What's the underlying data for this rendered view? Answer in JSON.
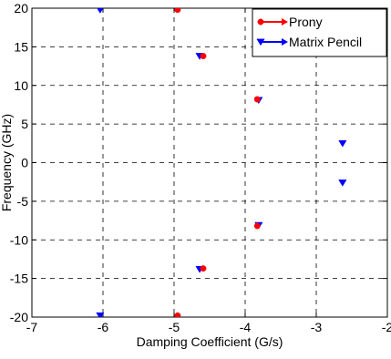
{
  "chart_data": {
    "type": "scatter",
    "title": "",
    "xlabel": "Damping Coefficient (G/s)",
    "ylabel": "Frequency (GHz)",
    "xlim": [
      -7,
      -2
    ],
    "ylim": [
      -20,
      20
    ],
    "xticks": [
      -7,
      -6,
      -5,
      -4,
      -3,
      -2
    ],
    "yticks": [
      -20,
      -15,
      -10,
      -5,
      0,
      5,
      10,
      15,
      20
    ],
    "xtick_labels": [
      "-7",
      "-6",
      "-5",
      "-4",
      "-3",
      "-2"
    ],
    "ytick_labels": [
      "-20",
      "-15",
      "-10",
      "-5",
      "0",
      "5",
      "10",
      "15",
      "20"
    ],
    "grid": true,
    "legend_position": "top-right",
    "series": [
      {
        "name": "Prony",
        "marker": "circle",
        "color": "#ff0000",
        "points": [
          {
            "x": -4.95,
            "y": 19.8
          },
          {
            "x": -4.95,
            "y": -19.8
          },
          {
            "x": -4.59,
            "y": 13.8
          },
          {
            "x": -4.59,
            "y": -13.7
          },
          {
            "x": -3.83,
            "y": 8.2
          },
          {
            "x": -3.83,
            "y": -8.2
          }
        ]
      },
      {
        "name": "Matrix Pencil",
        "marker": "triangle-down",
        "color": "#0000ff",
        "points": [
          {
            "x": -6.04,
            "y": 19.8
          },
          {
            "x": -6.04,
            "y": -19.8
          },
          {
            "x": -4.64,
            "y": 13.8
          },
          {
            "x": -4.64,
            "y": -13.8
          },
          {
            "x": -3.81,
            "y": 8.1
          },
          {
            "x": -3.81,
            "y": -8.1
          },
          {
            "x": -2.63,
            "y": 2.5
          },
          {
            "x": -2.63,
            "y": -2.6
          }
        ]
      }
    ]
  }
}
